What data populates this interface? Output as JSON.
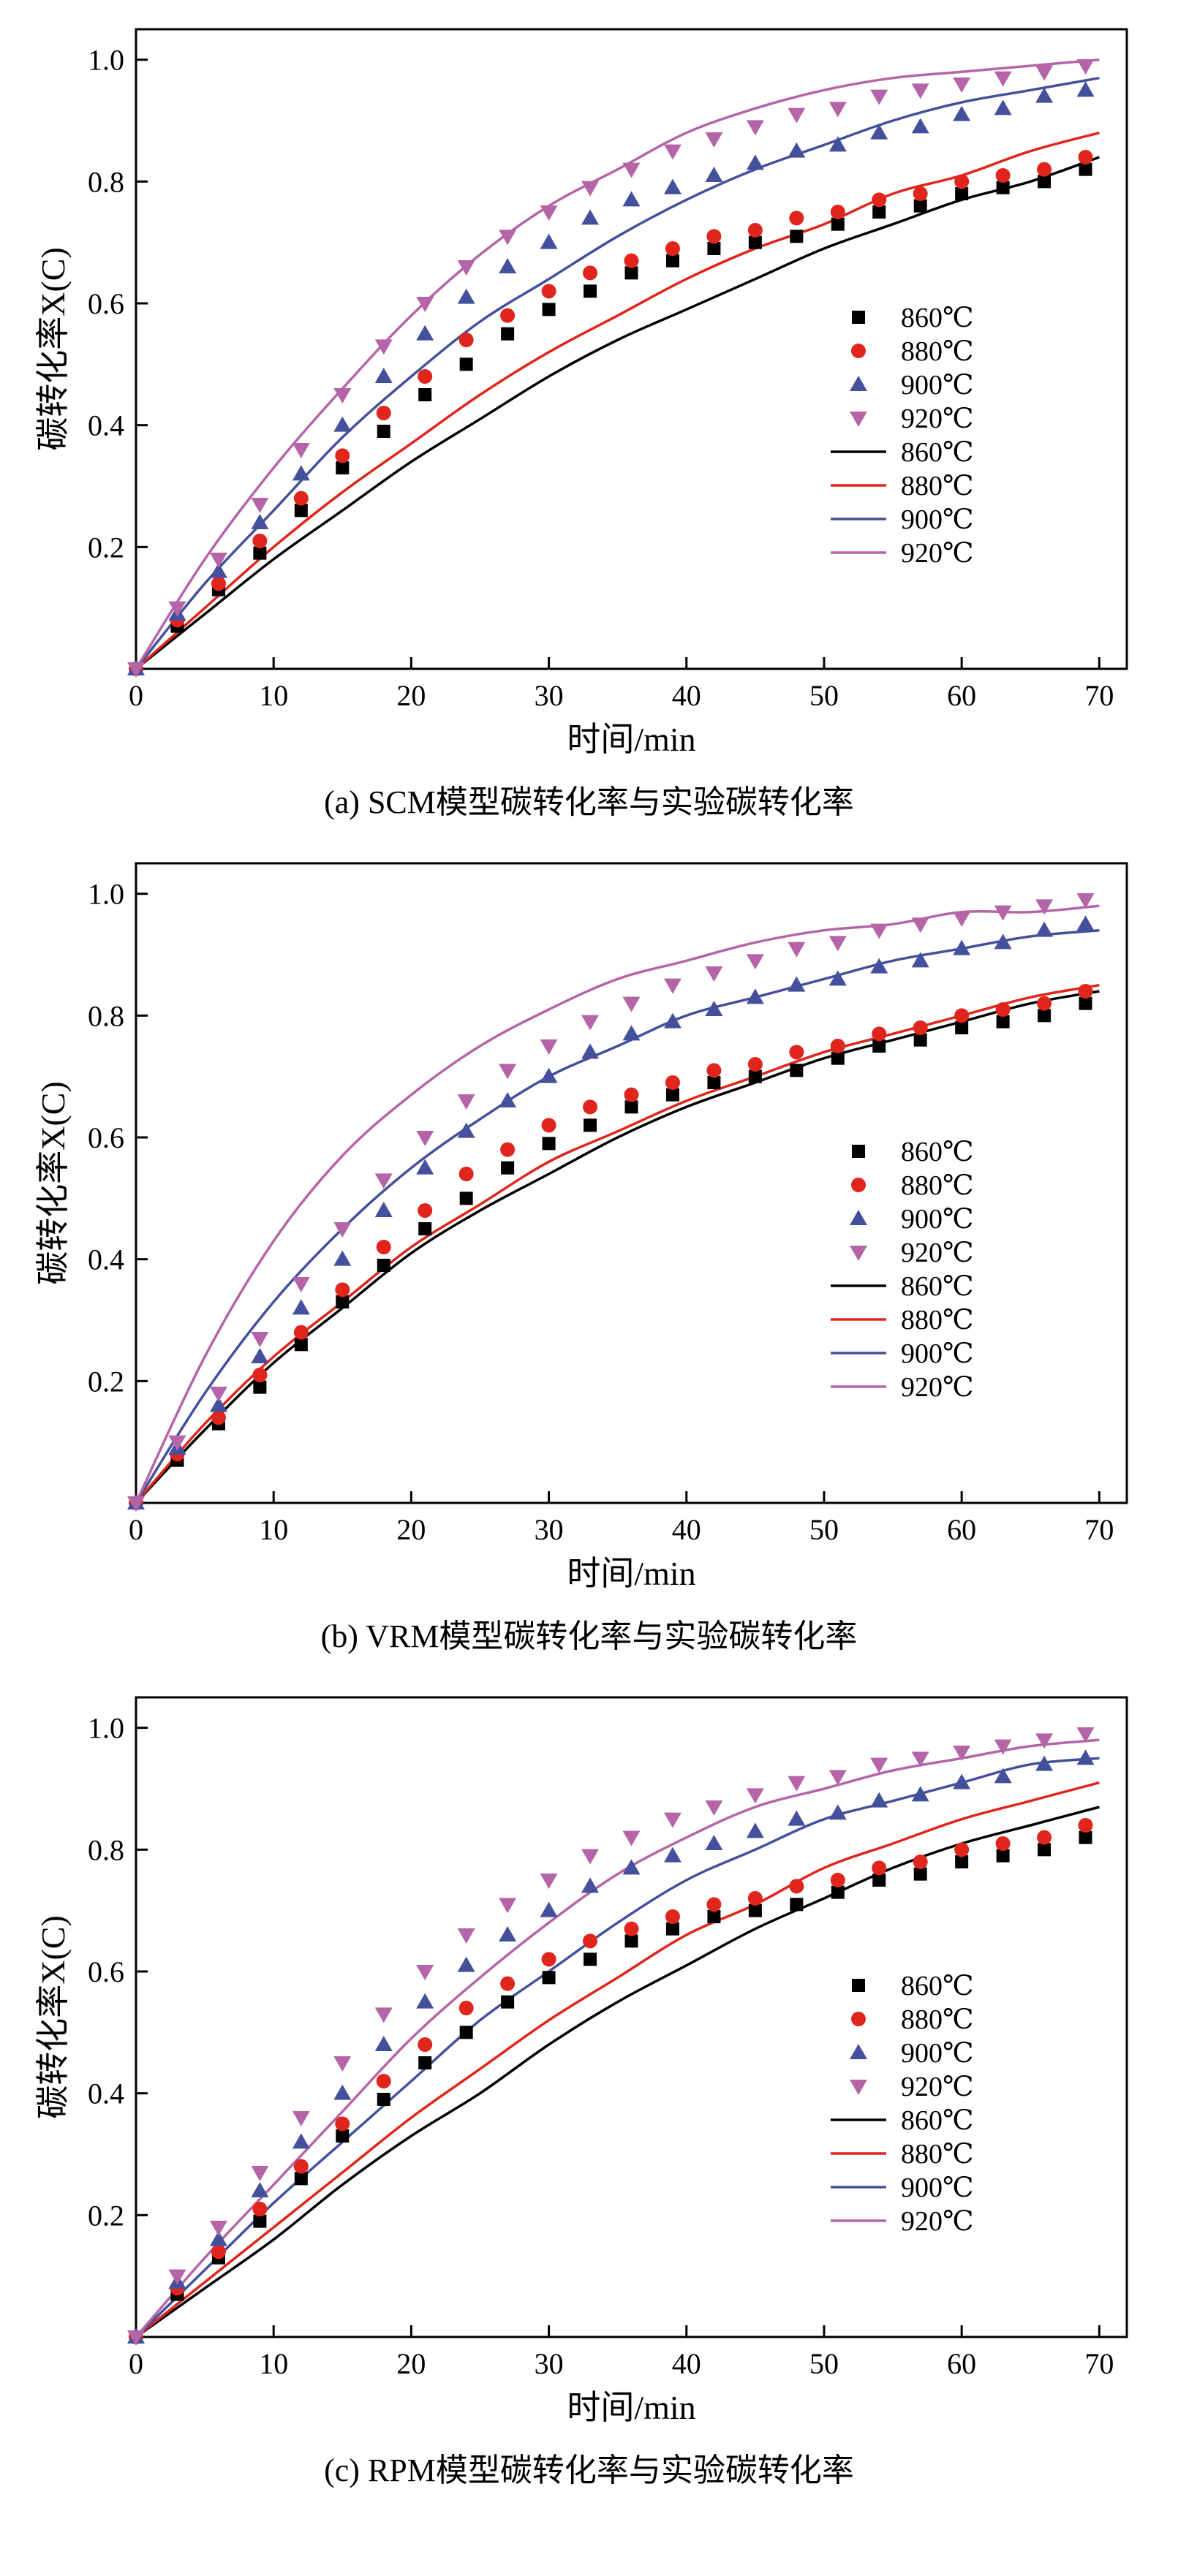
{
  "colors": {
    "t860": "#000000",
    "t880": "#e0261c",
    "t900": "#44509c",
    "t920": "#b565a7"
  },
  "chart_data": [
    {
      "type": "scatter+line",
      "title": "(a) SCM模型碳转化率与实验碳转化率",
      "xlabel": "时间/min",
      "ylabel": "碳转化率X(C)",
      "xlim": [
        0,
        72
      ],
      "ylim": [
        0,
        1.05
      ],
      "xticks": [
        0,
        10,
        20,
        30,
        40,
        50,
        60,
        70
      ],
      "yticks": [
        0.2,
        0.4,
        0.6,
        0.8,
        1.0
      ],
      "grid": false,
      "legend_position": "right-middle",
      "experimental": {
        "x": [
          0,
          3,
          6,
          9,
          12,
          15,
          18,
          21,
          24,
          27,
          30,
          33,
          36,
          39,
          42,
          45,
          48,
          51,
          54,
          57,
          60,
          63,
          66,
          69
        ],
        "series": [
          {
            "name": "860℃",
            "marker": "square",
            "color": "#000000",
            "y": [
              0,
              0.07,
              0.13,
              0.19,
              0.26,
              0.33,
              0.39,
              0.45,
              0.5,
              0.55,
              0.59,
              0.62,
              0.65,
              0.67,
              0.69,
              0.7,
              0.71,
              0.73,
              0.75,
              0.76,
              0.78,
              0.79,
              0.8,
              0.82
            ]
          },
          {
            "name": "880℃",
            "marker": "circle",
            "color": "#e0261c",
            "y": [
              0,
              0.08,
              0.14,
              0.21,
              0.28,
              0.35,
              0.42,
              0.48,
              0.54,
              0.58,
              0.62,
              0.65,
              0.67,
              0.69,
              0.71,
              0.72,
              0.74,
              0.75,
              0.77,
              0.78,
              0.8,
              0.81,
              0.82,
              0.84
            ]
          },
          {
            "name": "900℃",
            "marker": "triangle-up",
            "color": "#44509c",
            "y": [
              0,
              0.09,
              0.16,
              0.24,
              0.32,
              0.4,
              0.48,
              0.55,
              0.61,
              0.66,
              0.7,
              0.74,
              0.77,
              0.79,
              0.81,
              0.83,
              0.85,
              0.86,
              0.88,
              0.89,
              0.91,
              0.92,
              0.94,
              0.95
            ]
          },
          {
            "name": "920℃",
            "marker": "triangle-down",
            "color": "#b565a7",
            "y": [
              0,
              0.1,
              0.18,
              0.27,
              0.36,
              0.45,
              0.53,
              0.6,
              0.66,
              0.71,
              0.75,
              0.79,
              0.82,
              0.85,
              0.87,
              0.89,
              0.91,
              0.92,
              0.94,
              0.95,
              0.96,
              0.97,
              0.98,
              0.99
            ]
          }
        ]
      },
      "model": {
        "x": [
          0,
          5,
          10,
          15,
          20,
          25,
          30,
          35,
          40,
          45,
          50,
          55,
          60,
          65,
          70
        ],
        "series": [
          {
            "name": "860℃",
            "color": "#000000",
            "y": [
              0,
              0.09,
              0.18,
              0.26,
              0.34,
              0.41,
              0.48,
              0.54,
              0.59,
              0.64,
              0.69,
              0.73,
              0.77,
              0.8,
              0.84
            ]
          },
          {
            "name": "880℃",
            "color": "#e0261c",
            "y": [
              0,
              0.1,
              0.2,
              0.29,
              0.37,
              0.45,
              0.52,
              0.58,
              0.64,
              0.69,
              0.73,
              0.78,
              0.81,
              0.85,
              0.88
            ]
          },
          {
            "name": "900℃",
            "color": "#44509c",
            "y": [
              0,
              0.14,
              0.26,
              0.38,
              0.48,
              0.57,
              0.64,
              0.71,
              0.77,
              0.82,
              0.86,
              0.9,
              0.93,
              0.95,
              0.97
            ]
          },
          {
            "name": "920℃",
            "color": "#b565a7",
            "y": [
              0,
              0.18,
              0.33,
              0.46,
              0.58,
              0.68,
              0.76,
              0.82,
              0.88,
              0.92,
              0.95,
              0.97,
              0.98,
              0.99,
              1.0
            ]
          }
        ]
      }
    },
    {
      "type": "scatter+line",
      "title": "(b) VRM模型碳转化率与实验碳转化率",
      "xlabel": "时间/min",
      "ylabel": "碳转化率X(C)",
      "xlim": [
        0,
        72
      ],
      "ylim": [
        0,
        1.05
      ],
      "xticks": [
        0,
        10,
        20,
        30,
        40,
        50,
        60,
        70
      ],
      "yticks": [
        0.2,
        0.4,
        0.6,
        0.8,
        1.0
      ],
      "grid": false,
      "legend_position": "right-middle",
      "experimental": {
        "x": [
          0,
          3,
          6,
          9,
          12,
          15,
          18,
          21,
          24,
          27,
          30,
          33,
          36,
          39,
          42,
          45,
          48,
          51,
          54,
          57,
          60,
          63,
          66,
          69
        ],
        "series": [
          {
            "name": "860℃",
            "marker": "square",
            "color": "#000000",
            "y": [
              0,
              0.07,
              0.13,
              0.19,
              0.26,
              0.33,
              0.39,
              0.45,
              0.5,
              0.55,
              0.59,
              0.62,
              0.65,
              0.67,
              0.69,
              0.7,
              0.71,
              0.73,
              0.75,
              0.76,
              0.78,
              0.79,
              0.8,
              0.82
            ]
          },
          {
            "name": "880℃",
            "marker": "circle",
            "color": "#e0261c",
            "y": [
              0,
              0.08,
              0.14,
              0.21,
              0.28,
              0.35,
              0.42,
              0.48,
              0.54,
              0.58,
              0.62,
              0.65,
              0.67,
              0.69,
              0.71,
              0.72,
              0.74,
              0.75,
              0.77,
              0.78,
              0.8,
              0.81,
              0.82,
              0.84
            ]
          },
          {
            "name": "900℃",
            "marker": "triangle-up",
            "color": "#44509c",
            "y": [
              0,
              0.09,
              0.16,
              0.24,
              0.32,
              0.4,
              0.48,
              0.55,
              0.61,
              0.66,
              0.7,
              0.74,
              0.77,
              0.79,
              0.81,
              0.83,
              0.85,
              0.86,
              0.88,
              0.89,
              0.91,
              0.92,
              0.94,
              0.95
            ]
          },
          {
            "name": "920℃",
            "marker": "triangle-down",
            "color": "#b565a7",
            "y": [
              0,
              0.1,
              0.18,
              0.27,
              0.36,
              0.45,
              0.53,
              0.6,
              0.66,
              0.71,
              0.75,
              0.79,
              0.82,
              0.85,
              0.87,
              0.89,
              0.91,
              0.92,
              0.94,
              0.95,
              0.96,
              0.97,
              0.98,
              0.99
            ]
          }
        ]
      },
      "model": {
        "x": [
          0,
          5,
          10,
          15,
          20,
          25,
          30,
          35,
          40,
          45,
          50,
          55,
          60,
          65,
          70
        ],
        "series": [
          {
            "name": "860℃",
            "color": "#000000",
            "y": [
              0,
              0.12,
              0.23,
              0.32,
              0.41,
              0.48,
              0.54,
              0.6,
              0.65,
              0.69,
              0.73,
              0.76,
              0.79,
              0.82,
              0.84
            ]
          },
          {
            "name": "880℃",
            "color": "#e0261c",
            "y": [
              0,
              0.13,
              0.24,
              0.33,
              0.42,
              0.49,
              0.56,
              0.61,
              0.66,
              0.7,
              0.74,
              0.77,
              0.8,
              0.83,
              0.85
            ]
          },
          {
            "name": "900℃",
            "color": "#44509c",
            "y": [
              0,
              0.18,
              0.33,
              0.45,
              0.55,
              0.63,
              0.7,
              0.75,
              0.8,
              0.83,
              0.86,
              0.89,
              0.91,
              0.93,
              0.94
            ]
          },
          {
            "name": "920℃",
            "color": "#b565a7",
            "y": [
              0,
              0.24,
              0.43,
              0.57,
              0.67,
              0.75,
              0.81,
              0.86,
              0.89,
              0.92,
              0.94,
              0.95,
              0.97,
              0.97,
              0.98
            ]
          }
        ]
      }
    },
    {
      "type": "scatter+line",
      "title": "(c) RPM模型碳转化率与实验碳转化率",
      "xlabel": "时间/min",
      "ylabel": "碳转化率X(C)",
      "xlim": [
        0,
        72
      ],
      "ylim": [
        0,
        1.05
      ],
      "xticks": [
        0,
        10,
        20,
        30,
        40,
        50,
        60,
        70
      ],
      "yticks": [
        0.2,
        0.4,
        0.6,
        0.8,
        1.0
      ],
      "grid": false,
      "legend_position": "right-middle",
      "experimental": {
        "x": [
          0,
          3,
          6,
          9,
          12,
          15,
          18,
          21,
          24,
          27,
          30,
          33,
          36,
          39,
          42,
          45,
          48,
          51,
          54,
          57,
          60,
          63,
          66,
          69
        ],
        "series": [
          {
            "name": "860℃",
            "marker": "square",
            "color": "#000000",
            "y": [
              0,
              0.07,
              0.13,
              0.19,
              0.26,
              0.33,
              0.39,
              0.45,
              0.5,
              0.55,
              0.59,
              0.62,
              0.65,
              0.67,
              0.69,
              0.7,
              0.71,
              0.73,
              0.75,
              0.76,
              0.78,
              0.79,
              0.8,
              0.82
            ]
          },
          {
            "name": "880℃",
            "marker": "circle",
            "color": "#e0261c",
            "y": [
              0,
              0.08,
              0.14,
              0.21,
              0.28,
              0.35,
              0.42,
              0.48,
              0.54,
              0.58,
              0.62,
              0.65,
              0.67,
              0.69,
              0.71,
              0.72,
              0.74,
              0.75,
              0.77,
              0.78,
              0.8,
              0.81,
              0.82,
              0.84
            ]
          },
          {
            "name": "900℃",
            "marker": "triangle-up",
            "color": "#44509c",
            "y": [
              0,
              0.09,
              0.16,
              0.24,
              0.32,
              0.4,
              0.48,
              0.55,
              0.61,
              0.66,
              0.7,
              0.74,
              0.77,
              0.79,
              0.81,
              0.83,
              0.85,
              0.86,
              0.88,
              0.89,
              0.91,
              0.92,
              0.94,
              0.95
            ]
          },
          {
            "name": "920℃",
            "marker": "triangle-down",
            "color": "#b565a7",
            "y": [
              0,
              0.1,
              0.18,
              0.27,
              0.36,
              0.45,
              0.53,
              0.6,
              0.66,
              0.71,
              0.75,
              0.79,
              0.82,
              0.85,
              0.87,
              0.89,
              0.91,
              0.92,
              0.94,
              0.95,
              0.96,
              0.97,
              0.98,
              0.99
            ]
          }
        ]
      },
      "model": {
        "x": [
          0,
          5,
          10,
          15,
          20,
          25,
          30,
          35,
          40,
          45,
          50,
          55,
          60,
          65,
          70
        ],
        "series": [
          {
            "name": "860℃",
            "color": "#000000",
            "y": [
              0,
              0.08,
              0.16,
              0.25,
              0.33,
              0.4,
              0.48,
              0.55,
              0.61,
              0.67,
              0.72,
              0.77,
              0.81,
              0.84,
              0.87
            ]
          },
          {
            "name": "880℃",
            "color": "#e0261c",
            "y": [
              0,
              0.09,
              0.18,
              0.27,
              0.36,
              0.44,
              0.52,
              0.59,
              0.66,
              0.71,
              0.77,
              0.81,
              0.85,
              0.88,
              0.91
            ]
          },
          {
            "name": "900℃",
            "color": "#44509c",
            "y": [
              0,
              0.11,
              0.22,
              0.32,
              0.42,
              0.52,
              0.6,
              0.68,
              0.75,
              0.8,
              0.85,
              0.88,
              0.91,
              0.94,
              0.95
            ]
          },
          {
            "name": "920℃",
            "color": "#b565a7",
            "y": [
              0,
              0.13,
              0.25,
              0.37,
              0.49,
              0.59,
              0.68,
              0.76,
              0.82,
              0.87,
              0.9,
              0.93,
              0.95,
              0.97,
              0.98
            ]
          }
        ]
      }
    }
  ]
}
